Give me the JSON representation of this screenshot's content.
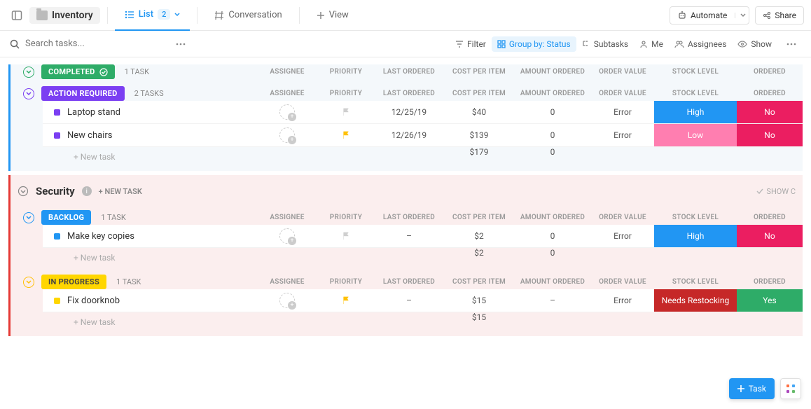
{
  "topbar": {
    "folder_name": "Inventory",
    "views": {
      "list": {
        "label": "List",
        "count": "2"
      },
      "conversation": {
        "label": "Conversation"
      },
      "add": {
        "label": "View"
      }
    },
    "automate_label": "Automate",
    "share_label": "Share"
  },
  "filterbar": {
    "search_placeholder": "Search tasks...",
    "filter_label": "Filter",
    "groupby_label": "Group by: Status",
    "subtasks_label": "Subtasks",
    "me_label": "Me",
    "assignees_label": "Assignees",
    "show_label": "Show"
  },
  "columns": {
    "assignee": "ASSIGNEE",
    "priority": "PRIORITY",
    "last_ordered": "LAST ORDERED",
    "cost": "COST PER ITEM",
    "amount": "AMOUNT ORDERED",
    "order_value": "ORDER VALUE",
    "stock": "STOCK LEVEL",
    "ordered": "ORDERED"
  },
  "colors": {
    "accent_blue": "#2196f3",
    "accent_red": "#e91e63",
    "pink": "#ff5e9c",
    "green": "#2eac68",
    "yellow": "#ffd600",
    "purple": "#7b3ff2",
    "completed": "#2eac68",
    "action_required_bg": "#7b3ff2",
    "backlog_bg": "#2196f3",
    "inprogress_bg": "#ffd600",
    "stock_high_bg": "#2196f3",
    "stock_low_bg": "#ff5e9c",
    "stock_restock_bg": "#c62828",
    "ordered_no_bg": "#eb1e61",
    "ordered_yes_bg": "#2eac68"
  },
  "labels": {
    "task_singular": "1 TASK",
    "tasks_plural": "2 TASKS",
    "new_task_inline": "+ New task",
    "new_task_header": "+ NEW TASK",
    "show_closed": "SHOW C"
  },
  "sections": [
    {
      "accent": "#2196f3",
      "groups": [
        {
          "status": {
            "label": "COMPLETED",
            "bg": "#2eac68",
            "text": "#ffffff",
            "chevron": "#2eac68",
            "check_icon": true
          },
          "task_count": "1 TASK",
          "tasks": []
        },
        {
          "status": {
            "label": "ACTION REQUIRED",
            "bg": "#7b3ff2",
            "text": "#ffffff",
            "chevron": "#7b3ff2"
          },
          "task_count": "2 TASKS",
          "tasks": [
            {
              "name": "Laptop stand",
              "square": "#7b3ff2",
              "flag": "#cfcfcf",
              "last": "12/25/19",
              "cost": "$40",
              "amount": "0",
              "order_value": "Error",
              "stock": {
                "label": "High",
                "bg": "#2196f3"
              },
              "ordered": {
                "label": "No",
                "bg": "#eb1e61"
              }
            },
            {
              "name": "New chairs",
              "square": "#7b3ff2",
              "flag": "#ffc107",
              "last": "12/26/19",
              "cost": "$139",
              "amount": "0",
              "order_value": "Error",
              "stock": {
                "label": "Low",
                "bg": "#ff7eb0"
              },
              "ordered": {
                "label": "No",
                "bg": "#eb1e61"
              }
            }
          ],
          "sum": {
            "cost": "$179",
            "amount": "0"
          }
        }
      ]
    },
    {
      "accent": "#e53935",
      "title": "Security",
      "groups": [
        {
          "status": {
            "label": "BACKLOG",
            "bg": "#2196f3",
            "text": "#ffffff",
            "chevron": "#2196f3"
          },
          "task_count": "1 TASK",
          "tasks": [
            {
              "name": "Make key copies",
              "square": "#2196f3",
              "flag": "#cfcfcf",
              "last": "–",
              "cost": "$2",
              "amount": "0",
              "order_value": "Error",
              "stock": {
                "label": "High",
                "bg": "#2196f3"
              },
              "ordered": {
                "label": "No",
                "bg": "#eb1e61"
              }
            }
          ],
          "sum": {
            "cost": "$2",
            "amount": "0"
          }
        },
        {
          "status": {
            "label": "IN PROGRESS",
            "bg": "#ffd600",
            "text": "#444444",
            "chevron": "#ffc107"
          },
          "task_count": "1 TASK",
          "tasks": [
            {
              "name": "Fix doorknob",
              "square": "#ffd600",
              "flag": "#ffc107",
              "last": "–",
              "cost": "$15",
              "amount": "–",
              "order_value": "Error",
              "stock": {
                "label": "Needs Restocking",
                "bg": "#c62828"
              },
              "ordered": {
                "label": "Yes",
                "bg": "#2eac68"
              }
            }
          ],
          "sum": {
            "cost": "$15"
          }
        }
      ]
    }
  ],
  "fab": {
    "task_label": "Task"
  }
}
